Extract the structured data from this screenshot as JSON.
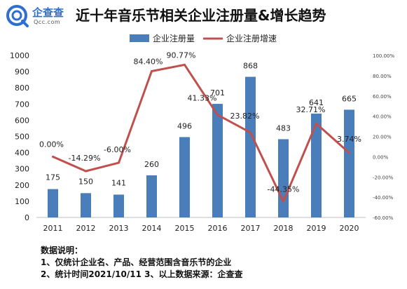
{
  "logo": {
    "name": "企查查",
    "sub": "Qcc.com"
  },
  "chart_data": {
    "type": "bar",
    "title": "近十年音乐节相关企业注册量&增长趋势",
    "categories": [
      "2011",
      "2012",
      "2013",
      "2014",
      "2015",
      "2016",
      "2017",
      "2018",
      "2019",
      "2020"
    ],
    "series": [
      {
        "name": "企业注册量",
        "kind": "bar",
        "axis": "left",
        "color": "#4a7ebb",
        "values": [
          175,
          150,
          141,
          260,
          496,
          701,
          868,
          483,
          641,
          665
        ],
        "labels": [
          "175",
          "150",
          "141",
          "260",
          "496",
          "701",
          "868",
          "483",
          "641",
          "665"
        ]
      },
      {
        "name": "企业注册增速",
        "kind": "line",
        "axis": "right",
        "color": "#c0504d",
        "values": [
          0.0,
          -14.29,
          -6.0,
          84.4,
          90.77,
          41.33,
          23.82,
          -44.35,
          32.71,
          3.74
        ],
        "labels": [
          "0.00%",
          "-14.29%",
          "-6.00%",
          "84.40%",
          "90.77%",
          "41.33%",
          "23.82%",
          "-44.35%",
          "32.71%",
          "3.74%"
        ]
      }
    ],
    "y_left": {
      "min": 0,
      "max": 1000,
      "ticks": [
        "0",
        "100",
        "200",
        "300",
        "400",
        "500",
        "600",
        "700",
        "800",
        "900",
        "1000"
      ]
    },
    "y_right": {
      "min": -60,
      "max": 100,
      "ticks": [
        "-60.00%",
        "-40.00%",
        "-20.00%",
        "0.00%",
        "20.00%",
        "40.00%",
        "60.00%",
        "80.00%",
        "100.00%"
      ]
    },
    "legend_position": "top-center",
    "grid": false
  },
  "notes": {
    "heading": "数据说明：",
    "line1": "1、仅统计企业名、产品、经营范围含音乐节的企业",
    "line2": "2、统计时间2021/10/11    3、以上数据来源：企查查"
  }
}
